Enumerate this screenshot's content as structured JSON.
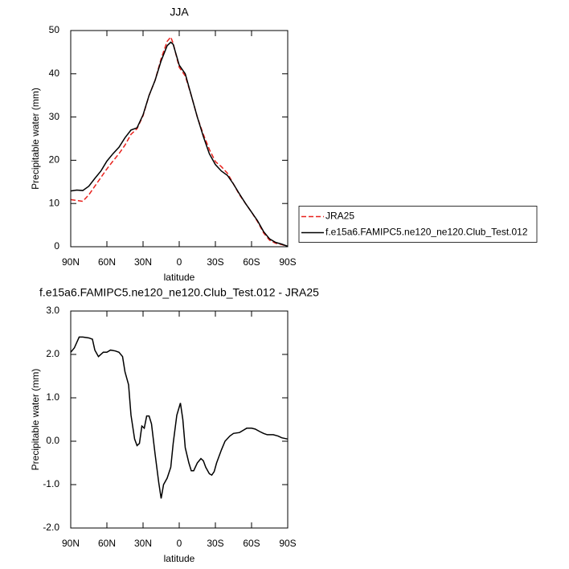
{
  "chart_data": [
    {
      "type": "line",
      "title": "JJA",
      "xlabel": "latitude",
      "ylabel": "Precipitable water (mm)",
      "x": [
        90,
        85,
        80,
        75,
        70,
        65,
        60,
        55,
        50,
        45,
        40,
        35,
        30,
        25,
        20,
        15,
        10,
        7,
        5,
        0,
        -5,
        -10,
        -15,
        -20,
        -25,
        -30,
        -35,
        -40,
        -45,
        -50,
        -55,
        -60,
        -65,
        -70,
        -75,
        -80,
        -85,
        -90
      ],
      "series": [
        {
          "name": "JRA25",
          "color": "#e8211c",
          "dash": "dashed",
          "values": [
            10.9,
            10.7,
            10.5,
            12,
            14,
            16,
            18,
            19.8,
            21.5,
            23.5,
            26,
            27.3,
            30.3,
            35,
            38.5,
            43.5,
            47.5,
            48.5,
            47,
            41.5,
            39.5,
            35,
            30,
            26,
            22.5,
            19.7,
            18.5,
            17,
            14.5,
            12,
            10,
            8,
            5.8,
            3.2,
            1.5,
            0.8,
            0.5,
            0.1
          ]
        },
        {
          "name": "f.e15a6.FAMIPC5.ne120_ne120.Club_Test.012",
          "color": "#000000",
          "dash": "solid",
          "values": [
            12.9,
            13.1,
            13,
            14,
            15.8,
            17.5,
            19.8,
            21.5,
            23,
            25.2,
            27,
            27.5,
            30.5,
            35,
            38.5,
            43,
            46.5,
            47.3,
            46.8,
            42,
            40,
            35,
            30,
            25.5,
            21.5,
            19,
            17.5,
            16.5,
            14.5,
            12.2,
            10,
            8,
            6,
            3.5,
            1.8,
            1,
            0.6,
            0.1
          ]
        }
      ],
      "xlim": [
        90,
        -90
      ],
      "xticks": [
        {
          "value": 90,
          "label": "90N"
        },
        {
          "value": 60,
          "label": "60N"
        },
        {
          "value": 30,
          "label": "30N"
        },
        0,
        {
          "value": -30,
          "label": "30S"
        },
        {
          "value": -60,
          "label": "60S"
        },
        {
          "value": -90,
          "label": "90S"
        }
      ],
      "ylim": [
        0,
        50
      ],
      "yticks": [
        0,
        10,
        20,
        30,
        40,
        50
      ],
      "legend": "right"
    },
    {
      "type": "line",
      "title": "f.e15a6.FAMIPC5.ne120_ne120.Club_Test.012 - JRA25",
      "xlabel": "latitude",
      "ylabel": "Precipitable water (mm)",
      "x": [
        90,
        87,
        83,
        80,
        75,
        72,
        70,
        67,
        63,
        60,
        57,
        53,
        50,
        47,
        45,
        42,
        40,
        37,
        35,
        33,
        31,
        29,
        27,
        25,
        23,
        20,
        17,
        15,
        13,
        10,
        7,
        5,
        2,
        -1,
        -3,
        -5,
        -8,
        -10,
        -12,
        -15,
        -18,
        -20,
        -22,
        -25,
        -27,
        -29,
        -31,
        -35,
        -38,
        -42,
        -45,
        -50,
        -53,
        -56,
        -60,
        -63,
        -67,
        -70,
        -73,
        -78,
        -82,
        -85,
        -90
      ],
      "series": [
        {
          "color": "#000000",
          "dash": "solid",
          "values": [
            2.05,
            2.15,
            2.4,
            2.4,
            2.38,
            2.35,
            2.1,
            1.95,
            2.05,
            2.05,
            2.1,
            2.08,
            2.05,
            1.95,
            1.6,
            1.3,
            0.6,
            0.05,
            -0.1,
            -0.05,
            0.35,
            0.3,
            0.58,
            0.58,
            0.4,
            -0.3,
            -0.95,
            -1.32,
            -1.0,
            -0.85,
            -0.6,
            -0.05,
            0.6,
            0.88,
            0.5,
            -0.15,
            -0.5,
            -0.68,
            -0.68,
            -0.5,
            -0.4,
            -0.45,
            -0.6,
            -0.75,
            -0.78,
            -0.7,
            -0.5,
            -0.2,
            0.0,
            0.12,
            0.18,
            0.2,
            0.25,
            0.3,
            0.3,
            0.28,
            0.22,
            0.18,
            0.15,
            0.15,
            0.12,
            0.08,
            0.05
          ]
        }
      ],
      "xlim": [
        90,
        -90
      ],
      "xticks": [
        {
          "value": 90,
          "label": "90N"
        },
        {
          "value": 60,
          "label": "60N"
        },
        {
          "value": 30,
          "label": "30N"
        },
        0,
        {
          "value": -30,
          "label": "30S"
        },
        {
          "value": -60,
          "label": "60S"
        },
        {
          "value": -90,
          "label": "90S"
        }
      ],
      "ylim": [
        -2,
        3
      ],
      "yticks": [
        {
          "value": -2,
          "label": "-2.0"
        },
        {
          "value": -1,
          "label": "-1.0"
        },
        {
          "value": 0,
          "label": "0.0"
        },
        {
          "value": 1,
          "label": "1.0"
        },
        {
          "value": 2,
          "label": "2.0"
        },
        {
          "value": 3,
          "label": "3.0"
        }
      ]
    }
  ]
}
